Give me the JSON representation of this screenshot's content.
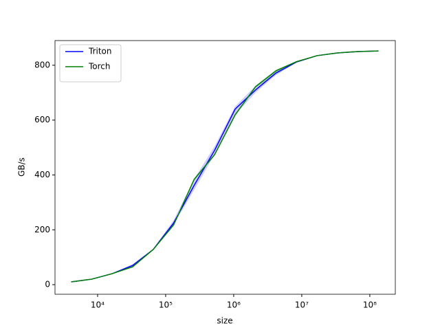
{
  "chart_data": {
    "type": "line",
    "xlabel": "size",
    "ylabel": "GB/s",
    "x": [
      4096,
      8192,
      16384,
      32768,
      65536,
      131072,
      262144,
      524288,
      1048576,
      2097152,
      4194304,
      8388608,
      16777216,
      33554432,
      67108864,
      134217728
    ],
    "series": [
      {
        "name": "Triton",
        "color": "#0000ff",
        "values": [
          10,
          20,
          40,
          70,
          128,
          225,
          362,
          490,
          640,
          710,
          772,
          812,
          835,
          845,
          850,
          852
        ],
        "band_low": [
          10,
          19,
          39,
          66,
          126,
          218,
          345,
          475,
          620,
          700,
          765,
          810,
          834,
          844,
          849,
          851
        ],
        "band_high": [
          11,
          21,
          41,
          75,
          130,
          235,
          385,
          505,
          650,
          725,
          782,
          815,
          836,
          846,
          851,
          853
        ]
      },
      {
        "name": "Torch",
        "color": "#008000",
        "values": [
          10,
          20,
          40,
          65,
          128,
          218,
          384,
          474,
          619,
          722,
          780,
          813,
          835,
          845,
          850,
          852
        ],
        "band_low": [
          9,
          19,
          39,
          63,
          126,
          215,
          378,
          470,
          612,
          718,
          765,
          810,
          834,
          844,
          849,
          851
        ],
        "band_high": [
          11,
          21,
          41,
          67,
          130,
          221,
          388,
          478,
          623,
          726,
          784,
          816,
          836,
          846,
          851,
          853
        ]
      }
    ],
    "xscale": "log",
    "xlim": [
      2366,
      237000000
    ],
    "xticks": [
      {
        "value": 10000,
        "label": "10⁴"
      },
      {
        "value": 100000,
        "label": "10⁵"
      },
      {
        "value": 1000000,
        "label": "10⁶"
      },
      {
        "value": 10000000,
        "label": "10⁷"
      },
      {
        "value": 100000000,
        "label": "10⁸"
      }
    ],
    "ylim": [
      -35,
      890
    ],
    "yticks": [
      0,
      200,
      400,
      600,
      800
    ],
    "legend": "upper left"
  }
}
